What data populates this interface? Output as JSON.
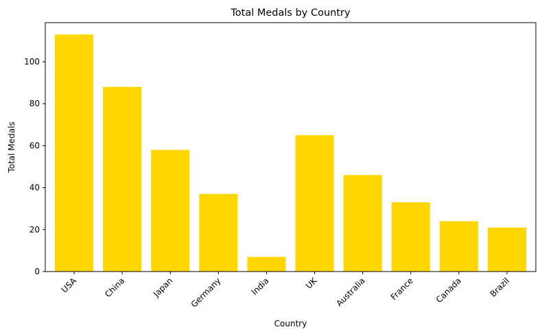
{
  "chart_data": {
    "type": "bar",
    "title": "Total Medals by Country",
    "xlabel": "Country",
    "ylabel": "Total Medals",
    "categories": [
      "USA",
      "China",
      "Japan",
      "Germany",
      "India",
      "UK",
      "Australia",
      "France",
      "Canada",
      "Brazil"
    ],
    "values": [
      113,
      88,
      58,
      37,
      7,
      65,
      46,
      33,
      24,
      21
    ],
    "yticks": [
      0,
      20,
      40,
      60,
      80,
      100
    ],
    "ylim": [
      0,
      118.65
    ],
    "bar_color": "#FFD700",
    "grid": false,
    "legend": "none"
  }
}
